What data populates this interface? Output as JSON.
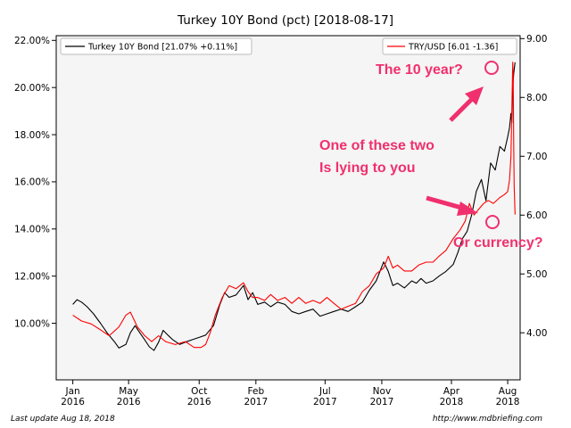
{
  "chart_data": {
    "type": "line",
    "title": "Turkey 10Y Bond (pct) [2018-08-17]",
    "x_ticks": [
      {
        "date": "2016-01-01",
        "label": [
          "Jan",
          "2016"
        ]
      },
      {
        "date": "2016-05-01",
        "label": [
          "May",
          "2016"
        ]
      },
      {
        "date": "2016-10-01",
        "label": [
          "Oct",
          "2016"
        ]
      },
      {
        "date": "2017-02-01",
        "label": [
          "Feb",
          "2017"
        ]
      },
      {
        "date": "2017-07-01",
        "label": [
          "Jul",
          "2017"
        ]
      },
      {
        "date": "2017-11-01",
        "label": [
          "Nov",
          "2017"
        ]
      },
      {
        "date": "2018-04-01",
        "label": [
          "Apr",
          "2018"
        ]
      },
      {
        "date": "2018-08-01",
        "label": [
          "Aug",
          "2018"
        ]
      }
    ],
    "xlim": [
      "2015-11-26",
      "2018-08-28"
    ],
    "y_left": {
      "ylim": [
        7.6,
        22.2
      ],
      "ticks": [
        10,
        12,
        14,
        16,
        18,
        20,
        22
      ],
      "tick_labels": [
        "10.00%",
        "12.00%",
        "14.00%",
        "16.00%",
        "18.00%",
        "20.00%",
        "22.00%"
      ]
    },
    "y_right": {
      "ylim": [
        3.2,
        9.05
      ],
      "ticks": [
        4,
        5,
        6,
        7,
        8,
        9
      ],
      "tick_labels": [
        "4.00",
        "5.00",
        "6.00",
        "7.00",
        "8.00",
        "9.00"
      ]
    },
    "series": [
      {
        "name": "Turkey 10Y Bond [21.07% +0.11%]",
        "axis": "left",
        "color": "#000000",
        "legend_position": "top-left",
        "points": [
          [
            "2016-01-01",
            10.8
          ],
          [
            "2016-01-10",
            11.0
          ],
          [
            "2016-01-20",
            10.9
          ],
          [
            "2016-02-01",
            10.7
          ],
          [
            "2016-02-15",
            10.4
          ],
          [
            "2016-03-01",
            10.0
          ],
          [
            "2016-03-15",
            9.6
          ],
          [
            "2016-04-01",
            9.2
          ],
          [
            "2016-04-10",
            8.95
          ],
          [
            "2016-04-25",
            9.1
          ],
          [
            "2016-05-05",
            9.6
          ],
          [
            "2016-05-15",
            9.9
          ],
          [
            "2016-05-25",
            9.6
          ],
          [
            "2016-06-05",
            9.3
          ],
          [
            "2016-06-15",
            9.0
          ],
          [
            "2016-06-25",
            8.85
          ],
          [
            "2016-07-05",
            9.2
          ],
          [
            "2016-07-15",
            9.7
          ],
          [
            "2016-07-25",
            9.5
          ],
          [
            "2016-08-05",
            9.3
          ],
          [
            "2016-08-20",
            9.1
          ],
          [
            "2016-09-01",
            9.2
          ],
          [
            "2016-09-15",
            9.3
          ],
          [
            "2016-10-01",
            9.4
          ],
          [
            "2016-10-15",
            9.5
          ],
          [
            "2016-11-01",
            9.9
          ],
          [
            "2016-11-15",
            10.8
          ],
          [
            "2016-11-25",
            11.3
          ],
          [
            "2016-12-05",
            11.1
          ],
          [
            "2016-12-20",
            11.2
          ],
          [
            "2017-01-05",
            11.6
          ],
          [
            "2017-01-15",
            11.0
          ],
          [
            "2017-01-25",
            11.3
          ],
          [
            "2017-02-05",
            10.8
          ],
          [
            "2017-02-20",
            10.9
          ],
          [
            "2017-03-05",
            10.7
          ],
          [
            "2017-03-20",
            10.9
          ],
          [
            "2017-04-05",
            10.8
          ],
          [
            "2017-04-20",
            10.5
          ],
          [
            "2017-05-05",
            10.4
          ],
          [
            "2017-05-20",
            10.5
          ],
          [
            "2017-06-05",
            10.6
          ],
          [
            "2017-06-20",
            10.3
          ],
          [
            "2017-07-05",
            10.4
          ],
          [
            "2017-07-20",
            10.5
          ],
          [
            "2017-08-05",
            10.6
          ],
          [
            "2017-08-20",
            10.5
          ],
          [
            "2017-09-05",
            10.7
          ],
          [
            "2017-09-20",
            10.9
          ],
          [
            "2017-10-05",
            11.4
          ],
          [
            "2017-10-20",
            11.8
          ],
          [
            "2017-11-05",
            12.6
          ],
          [
            "2017-11-15",
            12.2
          ],
          [
            "2017-11-25",
            11.6
          ],
          [
            "2017-12-05",
            11.7
          ],
          [
            "2017-12-20",
            11.5
          ],
          [
            "2018-01-05",
            11.8
          ],
          [
            "2018-01-15",
            11.7
          ],
          [
            "2018-01-25",
            11.9
          ],
          [
            "2018-02-05",
            11.7
          ],
          [
            "2018-02-20",
            11.8
          ],
          [
            "2018-03-05",
            12.0
          ],
          [
            "2018-03-20",
            12.2
          ],
          [
            "2018-04-05",
            12.5
          ],
          [
            "2018-04-15",
            13.0
          ],
          [
            "2018-04-25",
            13.6
          ],
          [
            "2018-05-05",
            13.9
          ],
          [
            "2018-05-15",
            14.6
          ],
          [
            "2018-05-25",
            15.6
          ],
          [
            "2018-06-05",
            16.1
          ],
          [
            "2018-06-15",
            15.2
          ],
          [
            "2018-06-25",
            16.8
          ],
          [
            "2018-07-05",
            16.5
          ],
          [
            "2018-07-15",
            17.5
          ],
          [
            "2018-07-25",
            17.3
          ],
          [
            "2018-08-01",
            17.9
          ],
          [
            "2018-08-05",
            18.3
          ],
          [
            "2018-08-08",
            18.9
          ],
          [
            "2018-08-10",
            18.5
          ],
          [
            "2018-08-12",
            20.0
          ],
          [
            "2018-08-14",
            20.6
          ],
          [
            "2018-08-17",
            21.07
          ]
        ]
      },
      {
        "name": "TRY/USD [6.01 -1.36]",
        "axis": "right",
        "color": "#ff0000",
        "legend_position": "top-right",
        "points": [
          [
            "2016-01-01",
            4.3
          ],
          [
            "2016-01-20",
            4.2
          ],
          [
            "2016-02-10",
            4.15
          ],
          [
            "2016-03-01",
            4.05
          ],
          [
            "2016-03-20",
            3.95
          ],
          [
            "2016-04-10",
            4.1
          ],
          [
            "2016-04-25",
            4.3
          ],
          [
            "2016-05-05",
            4.35
          ],
          [
            "2016-05-20",
            4.1
          ],
          [
            "2016-06-05",
            3.95
          ],
          [
            "2016-06-20",
            3.85
          ],
          [
            "2016-07-05",
            3.95
          ],
          [
            "2016-07-20",
            3.85
          ],
          [
            "2016-08-10",
            3.8
          ],
          [
            "2016-09-01",
            3.85
          ],
          [
            "2016-09-20",
            3.75
          ],
          [
            "2016-10-05",
            3.75
          ],
          [
            "2016-10-15",
            3.8
          ],
          [
            "2016-10-25",
            4.0
          ],
          [
            "2016-11-05",
            4.3
          ],
          [
            "2016-11-20",
            4.6
          ],
          [
            "2016-12-05",
            4.8
          ],
          [
            "2016-12-20",
            4.75
          ],
          [
            "2017-01-05",
            4.85
          ],
          [
            "2017-01-15",
            4.7
          ],
          [
            "2017-01-25",
            4.6
          ],
          [
            "2017-02-05",
            4.6
          ],
          [
            "2017-02-20",
            4.55
          ],
          [
            "2017-03-05",
            4.65
          ],
          [
            "2017-03-20",
            4.55
          ],
          [
            "2017-04-05",
            4.6
          ],
          [
            "2017-04-20",
            4.5
          ],
          [
            "2017-05-05",
            4.6
          ],
          [
            "2017-05-20",
            4.5
          ],
          [
            "2017-06-05",
            4.55
          ],
          [
            "2017-06-20",
            4.5
          ],
          [
            "2017-07-05",
            4.6
          ],
          [
            "2017-07-20",
            4.5
          ],
          [
            "2017-08-05",
            4.4
          ],
          [
            "2017-08-20",
            4.45
          ],
          [
            "2017-09-05",
            4.5
          ],
          [
            "2017-09-20",
            4.7
          ],
          [
            "2017-10-05",
            4.8
          ],
          [
            "2017-10-20",
            5.0
          ],
          [
            "2017-11-05",
            5.1
          ],
          [
            "2017-11-15",
            5.3
          ],
          [
            "2017-11-25",
            5.1
          ],
          [
            "2017-12-05",
            5.15
          ],
          [
            "2017-12-20",
            5.05
          ],
          [
            "2018-01-05",
            5.05
          ],
          [
            "2018-01-20",
            5.15
          ],
          [
            "2018-02-05",
            5.2
          ],
          [
            "2018-02-20",
            5.2
          ],
          [
            "2018-03-05",
            5.3
          ],
          [
            "2018-03-20",
            5.4
          ],
          [
            "2018-04-05",
            5.6
          ],
          [
            "2018-04-20",
            5.75
          ],
          [
            "2018-05-01",
            5.9
          ],
          [
            "2018-05-10",
            6.2
          ],
          [
            "2018-05-20",
            6.0
          ],
          [
            "2018-05-30",
            6.1
          ],
          [
            "2018-06-10",
            6.2
          ],
          [
            "2018-06-20",
            6.25
          ],
          [
            "2018-07-01",
            6.2
          ],
          [
            "2018-07-15",
            6.3
          ],
          [
            "2018-07-25",
            6.35
          ],
          [
            "2018-08-01",
            6.4
          ],
          [
            "2018-08-05",
            6.6
          ],
          [
            "2018-08-08",
            7.0
          ],
          [
            "2018-08-10",
            7.8
          ],
          [
            "2018-08-12",
            8.6
          ],
          [
            "2018-08-13",
            8.4
          ],
          [
            "2018-08-14",
            7.2
          ],
          [
            "2018-08-15",
            6.5
          ],
          [
            "2018-08-17",
            6.01
          ]
        ]
      }
    ],
    "grid": false
  },
  "annotations": [
    {
      "name": "annotation-ten-year",
      "lines": [
        "The 10 year?"
      ]
    },
    {
      "name": "annotation-lying",
      "lines": [
        "One of these two",
        "Is lying to you"
      ]
    },
    {
      "name": "annotation-currency",
      "lines": [
        "Or currency?"
      ]
    }
  ],
  "annotation_color": "#f0306e",
  "footer": {
    "left": "Last update Aug 18, 2018",
    "right": "http://www.mdbriefing.com"
  }
}
